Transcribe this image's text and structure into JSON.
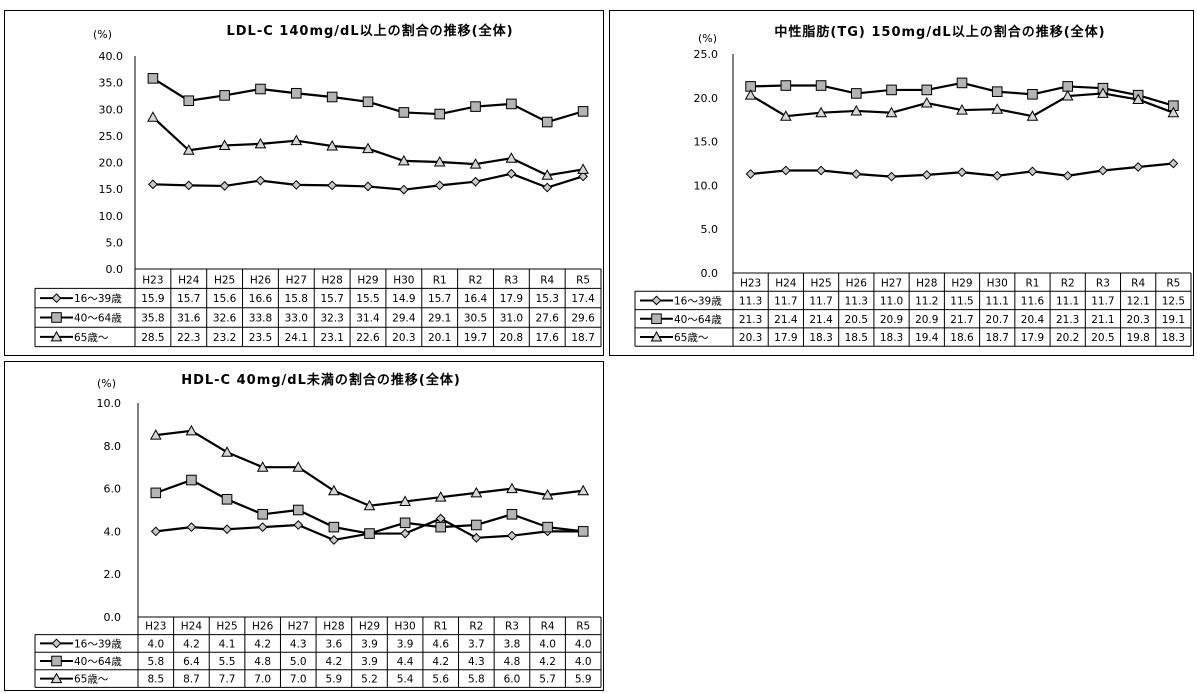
{
  "chart_data": [
    {
      "type": "line",
      "title": "LDL-C 140mg/dL以上の割合の推移(全体)",
      "unit": "(%)",
      "categories": [
        "H23",
        "H24",
        "H25",
        "H26",
        "H27",
        "H28",
        "H29",
        "H30",
        "R1",
        "R2",
        "R3",
        "R4",
        "R5"
      ],
      "y_ticks": [
        "0.0",
        "5.0",
        "10.0",
        "15.0",
        "20.0",
        "25.0",
        "30.0",
        "35.0",
        "40.0"
      ],
      "ylim": [
        0,
        40
      ],
      "grid": false,
      "legend": "table-below",
      "series": [
        {
          "name": "16～39歳",
          "marker": "diamond",
          "values": [
            15.9,
            15.7,
            15.6,
            16.6,
            15.8,
            15.7,
            15.5,
            14.9,
            15.7,
            16.4,
            17.9,
            15.3,
            17.4
          ]
        },
        {
          "name": "40～64歳",
          "marker": "square",
          "values": [
            35.8,
            31.6,
            32.6,
            33.8,
            33.0,
            32.3,
            31.4,
            29.4,
            29.1,
            30.5,
            31.0,
            27.6,
            29.6
          ]
        },
        {
          "name": "65歳～",
          "marker": "triangle",
          "values": [
            28.5,
            22.3,
            23.2,
            23.5,
            24.1,
            23.1,
            22.6,
            20.3,
            20.1,
            19.7,
            20.8,
            17.6,
            18.7
          ]
        }
      ]
    },
    {
      "type": "line",
      "title": "中性脂肪(TG) 150mg/dL以上の割合の推移(全体)",
      "unit": "(%)",
      "categories": [
        "H23",
        "H24",
        "H25",
        "H26",
        "H27",
        "H28",
        "H29",
        "H30",
        "R1",
        "R2",
        "R3",
        "R4",
        "R5"
      ],
      "y_ticks": [
        "0.0",
        "5.0",
        "10.0",
        "15.0",
        "20.0",
        "25.0"
      ],
      "ylim": [
        0,
        25
      ],
      "grid": false,
      "legend": "table-below",
      "series": [
        {
          "name": "16～39歳",
          "marker": "diamond",
          "values": [
            11.3,
            11.7,
            11.7,
            11.3,
            11.0,
            11.2,
            11.5,
            11.1,
            11.6,
            11.1,
            11.7,
            12.1,
            12.5
          ]
        },
        {
          "name": "40～64歳",
          "marker": "square",
          "values": [
            21.3,
            21.4,
            21.4,
            20.5,
            20.9,
            20.9,
            21.7,
            20.7,
            20.4,
            21.3,
            21.1,
            20.3,
            19.1
          ]
        },
        {
          "name": "65歳～",
          "marker": "triangle",
          "values": [
            20.3,
            17.9,
            18.3,
            18.5,
            18.3,
            19.4,
            18.6,
            18.7,
            17.9,
            20.2,
            20.5,
            19.8,
            18.3
          ]
        }
      ]
    },
    {
      "type": "line",
      "title": "HDL-C 40mg/dL未満の割合の推移(全体)",
      "unit": "(%)",
      "categories": [
        "H23",
        "H24",
        "H25",
        "H26",
        "H27",
        "H28",
        "H29",
        "H30",
        "R1",
        "R2",
        "R3",
        "R4",
        "R5"
      ],
      "y_ticks": [
        "0.0",
        "2.0",
        "4.0",
        "6.0",
        "8.0",
        "10.0"
      ],
      "ylim": [
        0,
        10
      ],
      "grid": false,
      "legend": "table-below",
      "series": [
        {
          "name": "16～39歳",
          "marker": "diamond",
          "values": [
            4.0,
            4.2,
            4.1,
            4.2,
            4.3,
            3.6,
            3.9,
            3.9,
            4.6,
            3.7,
            3.8,
            4.0,
            4.0
          ]
        },
        {
          "name": "40～64歳",
          "marker": "square",
          "values": [
            5.8,
            6.4,
            5.5,
            4.8,
            5.0,
            4.2,
            3.9,
            4.4,
            4.2,
            4.3,
            4.8,
            4.2,
            4.0
          ]
        },
        {
          "name": "65歳～",
          "marker": "triangle",
          "values": [
            8.5,
            8.7,
            7.7,
            7.0,
            7.0,
            5.9,
            5.2,
            5.4,
            5.6,
            5.8,
            6.0,
            5.7,
            5.9
          ]
        }
      ]
    }
  ]
}
